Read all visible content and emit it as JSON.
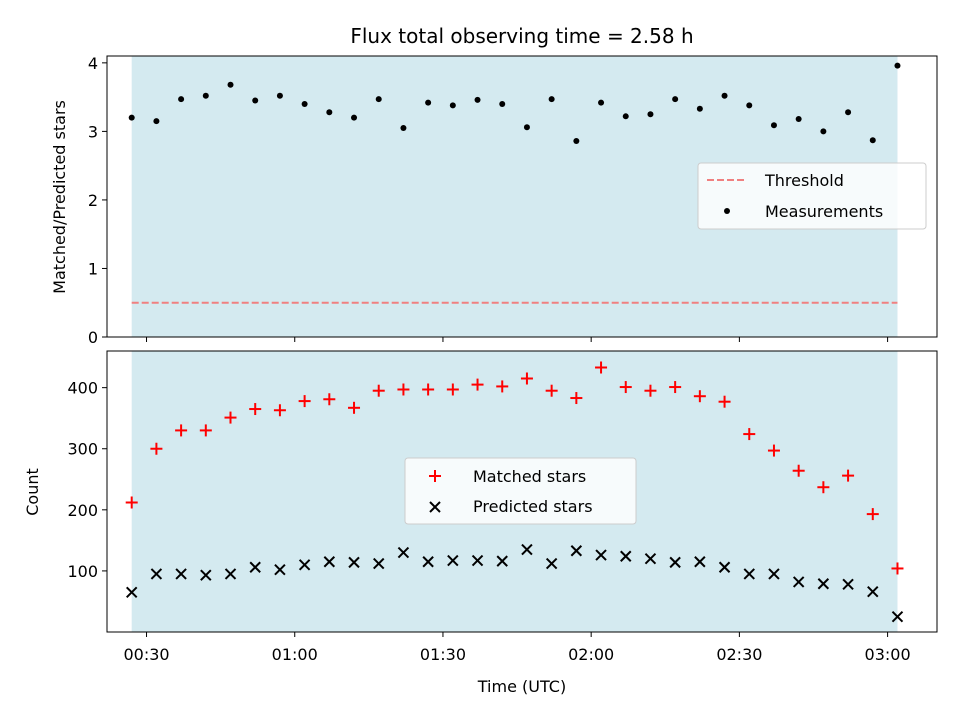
{
  "title": "Flux total observing time = 2.58 h",
  "xlabel": "Time (UTC)",
  "xtick_labels": [
    "00:30",
    "01:00",
    "01:30",
    "02:00",
    "02:30",
    "03:00"
  ],
  "colors": {
    "band": "#d4eaf0",
    "threshold": "#f08080",
    "measurements": "#000000",
    "matched": "#ff0000",
    "predicted": "#000000"
  },
  "chart_data": [
    {
      "type": "scatter",
      "panel": "top",
      "ylabel": "Matched/Predicted stars",
      "ylim": [
        0,
        4.1
      ],
      "yticks": [
        0,
        1,
        2,
        3,
        4
      ],
      "xlim": [
        "00:22",
        "03:10"
      ],
      "shaded_span": [
        "00:27",
        "03:02"
      ],
      "legend": [
        "Threshold",
        "Measurements"
      ],
      "legend_placement": "center-right",
      "threshold": 0.5,
      "series": [
        {
          "name": "Measurements",
          "marker": "dot",
          "x": [
            "00:27",
            "00:32",
            "00:37",
            "00:42",
            "00:47",
            "00:52",
            "00:57",
            "01:02",
            "01:07",
            "01:12",
            "01:17",
            "01:22",
            "01:27",
            "01:32",
            "01:37",
            "01:42",
            "01:47",
            "01:52",
            "01:57",
            "02:02",
            "02:07",
            "02:12",
            "02:17",
            "02:22",
            "02:27",
            "02:32",
            "02:37",
            "02:42",
            "02:47",
            "02:52",
            "02:57",
            "03:02"
          ],
          "y": [
            3.2,
            3.15,
            3.47,
            3.52,
            3.68,
            3.45,
            3.52,
            3.4,
            3.28,
            3.2,
            3.47,
            3.05,
            3.42,
            3.38,
            3.46,
            3.4,
            3.06,
            3.47,
            2.86,
            3.42,
            3.22,
            3.25,
            3.47,
            3.33,
            3.52,
            3.38,
            3.09,
            3.18,
            3.0,
            3.28,
            2.87,
            3.96
          ]
        }
      ]
    },
    {
      "type": "scatter",
      "panel": "bottom",
      "ylabel": "Count",
      "ylim": [
        0,
        460
      ],
      "yticks": [
        100,
        200,
        300,
        400
      ],
      "xlim": [
        "00:22",
        "03:10"
      ],
      "shaded_span": [
        "00:27",
        "03:02"
      ],
      "legend": [
        "Matched stars",
        "Predicted stars"
      ],
      "legend_placement": "center",
      "series": [
        {
          "name": "Matched stars",
          "marker": "plus",
          "x": [
            "00:27",
            "00:32",
            "00:37",
            "00:42",
            "00:47",
            "00:52",
            "00:57",
            "01:02",
            "01:07",
            "01:12",
            "01:17",
            "01:22",
            "01:27",
            "01:32",
            "01:37",
            "01:42",
            "01:47",
            "01:52",
            "01:57",
            "02:02",
            "02:07",
            "02:12",
            "02:17",
            "02:22",
            "02:27",
            "02:32",
            "02:37",
            "02:42",
            "02:47",
            "02:52",
            "02:57",
            "03:02"
          ],
          "y": [
            212,
            300,
            330,
            330,
            351,
            365,
            363,
            378,
            381,
            367,
            395,
            397,
            397,
            397,
            405,
            402,
            415,
            395,
            383,
            433,
            401,
            395,
            401,
            386,
            377,
            324,
            297,
            264,
            237,
            256,
            193,
            104
          ]
        },
        {
          "name": "Predicted stars",
          "marker": "x",
          "x": [
            "00:27",
            "00:32",
            "00:37",
            "00:42",
            "00:47",
            "00:52",
            "00:57",
            "01:02",
            "01:07",
            "01:12",
            "01:17",
            "01:22",
            "01:27",
            "01:32",
            "01:37",
            "01:42",
            "01:47",
            "01:52",
            "01:57",
            "02:02",
            "02:07",
            "02:12",
            "02:17",
            "02:22",
            "02:27",
            "02:32",
            "02:37",
            "02:42",
            "02:47",
            "02:52",
            "02:57",
            "03:02"
          ],
          "y": [
            65,
            95,
            95,
            93,
            95,
            106,
            102,
            110,
            115,
            114,
            112,
            130,
            115,
            117,
            117,
            116,
            135,
            112,
            133,
            126,
            124,
            120,
            114,
            115,
            106,
            95,
            95,
            82,
            79,
            78,
            66,
            25
          ]
        }
      ]
    }
  ]
}
